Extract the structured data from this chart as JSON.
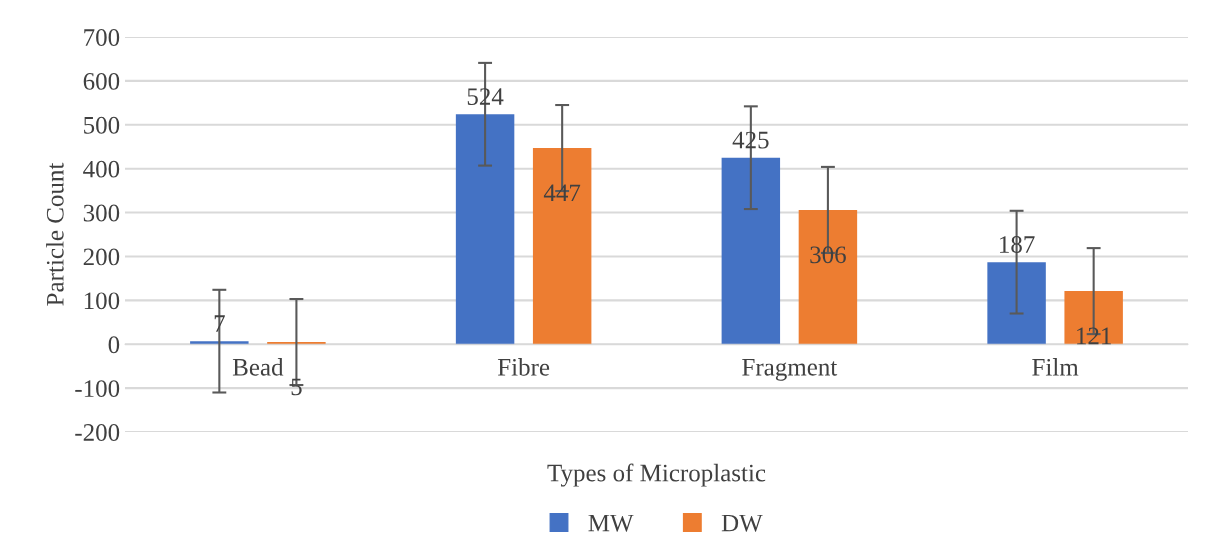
{
  "chart_data": {
    "type": "bar",
    "xlabel": "Types of Microplastic",
    "ylabel": "Particle Count",
    "categories": [
      "Bead",
      "Fibre",
      "Fragment",
      "Film"
    ],
    "series": [
      {
        "name": "MW",
        "color": "#4472c4",
        "values": [
          7,
          524,
          425,
          187
        ],
        "errors": [
          117,
          117,
          117,
          117
        ]
      },
      {
        "name": "DW",
        "color": "#ed7d31",
        "values": [
          5,
          447,
          306,
          121
        ],
        "errors": [
          98,
          98,
          98,
          98
        ]
      }
    ],
    "ylim": [
      -200,
      700
    ],
    "yticks": [
      -200,
      -100,
      0,
      100,
      200,
      300,
      400,
      500,
      600,
      700
    ],
    "grid": "y",
    "legend": "bottom",
    "data_labels": true
  }
}
